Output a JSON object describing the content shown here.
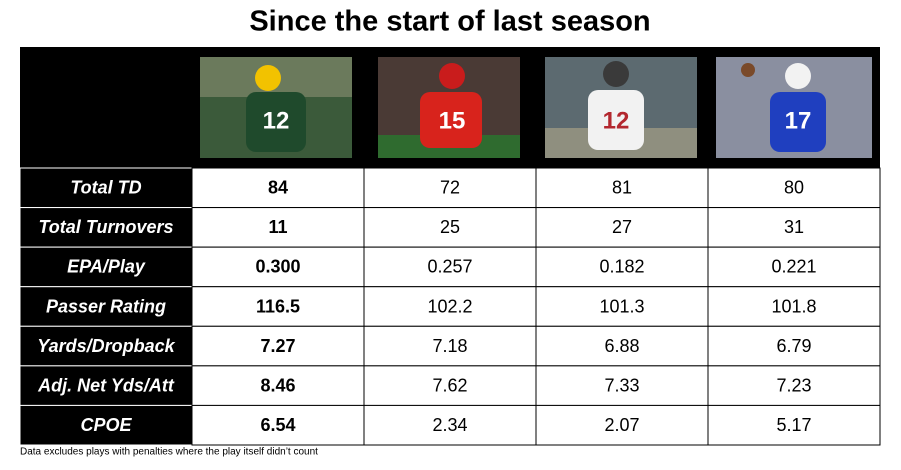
{
  "title": "Since the start of last season",
  "table": {
    "rows": [
      {
        "label": "Total TD",
        "values": [
          "84",
          "72",
          "81",
          "80"
        ]
      },
      {
        "label": "Total Turnovers",
        "values": [
          "11",
          "25",
          "27",
          "31"
        ]
      },
      {
        "label": "EPA/Play",
        "values": [
          "0.300",
          "0.257",
          "0.182",
          "0.221"
        ]
      },
      {
        "label": "Passer Rating",
        "values": [
          "116.5",
          "102.2",
          "101.3",
          "101.8"
        ]
      },
      {
        "label": "Yards/Dropback",
        "values": [
          "7.27",
          "7.18",
          "6.88",
          "6.79"
        ]
      },
      {
        "label": "Adj. Net Yds/Att",
        "values": [
          "8.46",
          "7.62",
          "7.33",
          "7.23"
        ]
      },
      {
        "label": "CPOE",
        "values": [
          "6.54",
          "2.34",
          "2.07",
          "5.17"
        ]
      }
    ]
  },
  "footnote": "Data excludes plays with penalties where the play itself didn’t count"
}
